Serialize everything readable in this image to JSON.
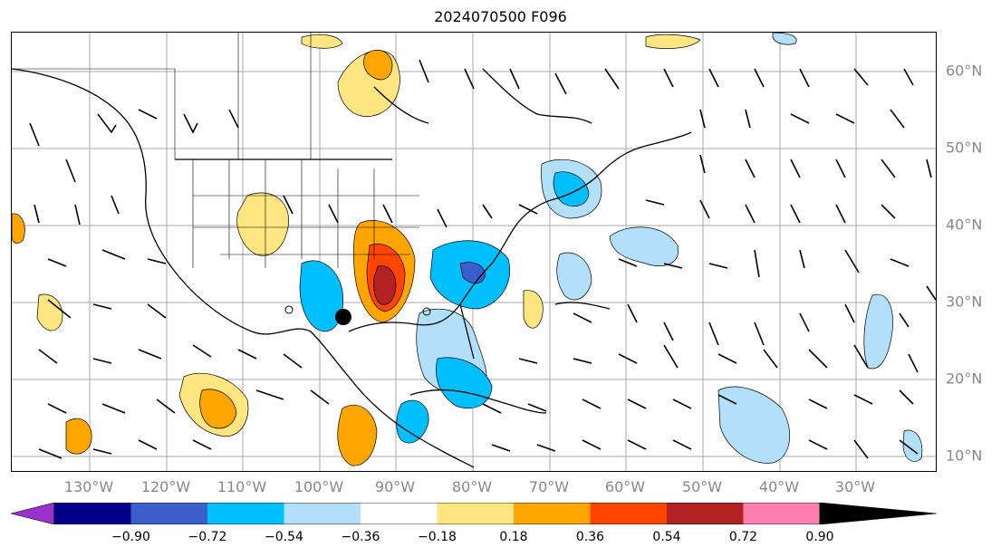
{
  "title": "2024070500 F096",
  "longitude_labels": [
    "130°W",
    "120°W",
    "110°W",
    "100°W",
    "90°W",
    "80°W",
    "70°W",
    "60°W",
    "50°W",
    "40°W",
    "30°W"
  ],
  "latitude_labels": [
    "60°N",
    "50°N",
    "40°N",
    "30°N",
    "20°N",
    "10°N"
  ],
  "colorbar": {
    "tick_labels": [
      "−0.90",
      "−0.72",
      "−0.54",
      "−0.36",
      "−0.18",
      "0.18",
      "0.36",
      "0.54",
      "0.72",
      "0.90"
    ],
    "colors": [
      "#9932cc",
      "#00008b",
      "#3a5fcd",
      "#00bfff",
      "#b2e0fa",
      "#ffffff",
      "#ffe680",
      "#ffa500",
      "#ff4500",
      "#b22222",
      "#ff80b0"
    ]
  }
}
